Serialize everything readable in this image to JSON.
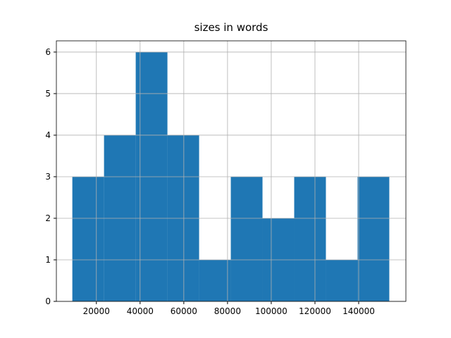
{
  "chart_data": {
    "type": "histogram",
    "title": "sizes in words",
    "bins": [
      9000,
      23500,
      38000,
      52500,
      67000,
      81500,
      96000,
      110500,
      125000,
      139500,
      154000
    ],
    "values": [
      3,
      4,
      6,
      4,
      1,
      3,
      2,
      3,
      1,
      3
    ],
    "color": "#1f77b4",
    "xlim": [
      1700,
      161600
    ],
    "xticks": [
      20000,
      40000,
      60000,
      80000,
      100000,
      120000,
      140000
    ],
    "ylim": [
      0,
      6.27
    ],
    "yticks": [
      0,
      1,
      2,
      3,
      4,
      5,
      6
    ],
    "grid": true
  }
}
